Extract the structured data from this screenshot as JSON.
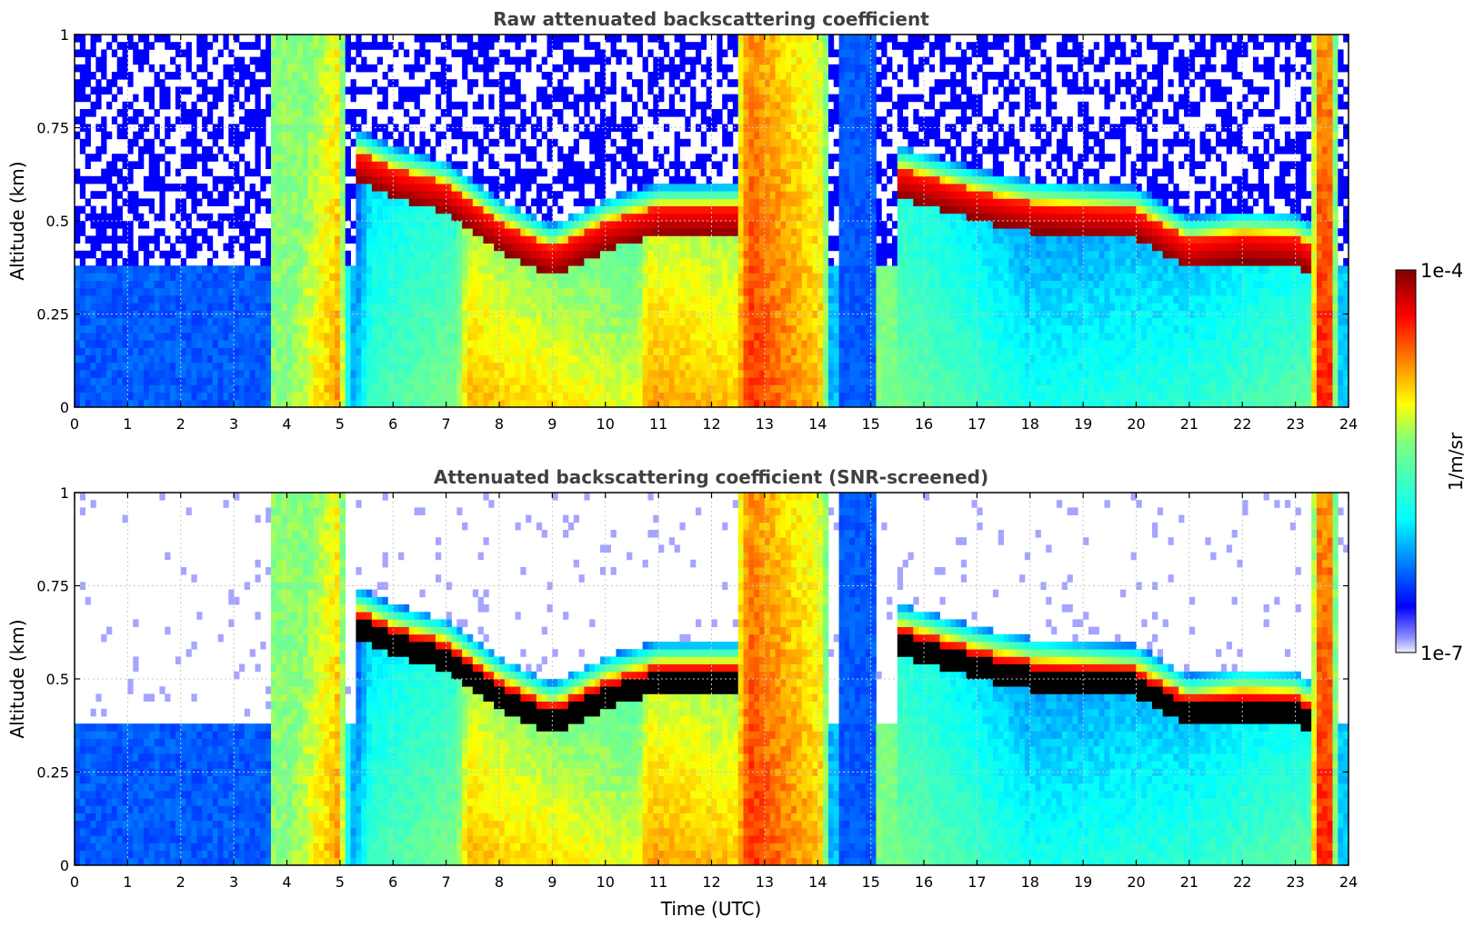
{
  "chart_data": [
    {
      "type": "heatmap",
      "title": "Raw attenuated backscattering coefficient",
      "xlabel": "",
      "ylabel": "Altitude (km)",
      "xlim": [
        0,
        24
      ],
      "ylim": [
        0,
        1
      ],
      "x_ticks": [
        "0",
        "1",
        "2",
        "3",
        "4",
        "5",
        "6",
        "7",
        "8",
        "9",
        "10",
        "11",
        "12",
        "13",
        "14",
        "15",
        "16",
        "17",
        "18",
        "19",
        "20",
        "21",
        "22",
        "23",
        "24"
      ],
      "y_ticks": [
        "0",
        "0.25",
        "0.5",
        "0.75",
        "1"
      ],
      "x_tick_values": [
        0,
        1,
        2,
        3,
        4,
        5,
        6,
        7,
        8,
        9,
        10,
        11,
        12,
        13,
        14,
        15,
        16,
        17,
        18,
        19,
        20,
        21,
        22,
        23,
        24
      ],
      "y_tick_values": [
        0,
        0.25,
        0.5,
        0.75,
        1
      ],
      "grid": true,
      "cloud_layer_base_km": [
        {
          "t": 5.4,
          "alt": 0.6
        },
        {
          "t": 6.0,
          "alt": 0.56
        },
        {
          "t": 7.0,
          "alt": 0.52
        },
        {
          "t": 8.0,
          "alt": 0.42
        },
        {
          "t": 9.0,
          "alt": 0.35
        },
        {
          "t": 10.0,
          "alt": 0.42
        },
        {
          "t": 11.0,
          "alt": 0.46
        },
        {
          "t": 12.5,
          "alt": 0.46
        },
        {
          "t": 15.6,
          "alt": 0.56
        },
        {
          "t": 17.0,
          "alt": 0.5
        },
        {
          "t": 18.0,
          "alt": 0.47
        },
        {
          "t": 20.0,
          "alt": 0.45
        },
        {
          "t": 21.0,
          "alt": 0.37
        },
        {
          "t": 22.0,
          "alt": 0.39
        },
        {
          "t": 23.0,
          "alt": 0.38
        },
        {
          "t": 23.6,
          "alt": 0.33
        }
      ]
    },
    {
      "type": "heatmap",
      "title": "Attenuated backscattering coefficient (SNR-screened)",
      "xlabel": "Time (UTC)",
      "ylabel": "Altitude (km)",
      "xlim": [
        0,
        24
      ],
      "ylim": [
        0,
        1
      ],
      "x_ticks": [
        "0",
        "1",
        "2",
        "3",
        "4",
        "5",
        "6",
        "7",
        "8",
        "9",
        "10",
        "11",
        "12",
        "13",
        "14",
        "15",
        "16",
        "17",
        "18",
        "19",
        "20",
        "21",
        "22",
        "23",
        "24"
      ],
      "y_ticks": [
        "0",
        "0.25",
        "0.5",
        "0.75",
        "1"
      ],
      "x_tick_values": [
        0,
        1,
        2,
        3,
        4,
        5,
        6,
        7,
        8,
        9,
        10,
        11,
        12,
        13,
        14,
        15,
        16,
        17,
        18,
        19,
        20,
        21,
        22,
        23,
        24
      ],
      "y_tick_values": [
        0,
        0.25,
        0.5,
        0.75,
        1
      ],
      "grid": true,
      "saturated_color": "#000000"
    }
  ],
  "colorbar": {
    "label": "1/m/sr",
    "max_label": "1e-4",
    "min_label": "1e-7",
    "colors": [
      "#eeeeff",
      "#0000ff",
      "#00ffff",
      "#ffff00",
      "#ff0000",
      "#800000"
    ]
  }
}
